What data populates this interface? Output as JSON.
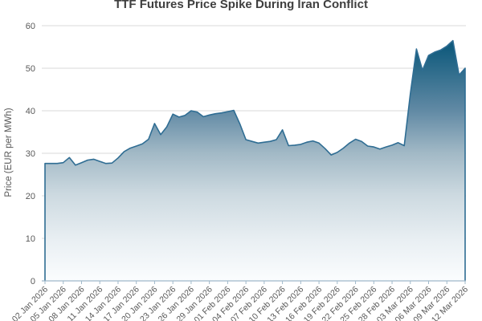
{
  "chart_data": {
    "type": "area",
    "title": "TTF Futures Price Spike During Iran Conflict",
    "xlabel": "",
    "ylabel": "Price (EUR per MWh)",
    "ylim": [
      0,
      60
    ],
    "ytick_step": 10,
    "grid": "horizontal",
    "legend": "none",
    "x_label_every": 3,
    "x_label_rotation_deg": 45,
    "series_name": "TTF front-month futures price",
    "dates": [
      "02 Jan 2026",
      "03 Jan 2026",
      "04 Jan 2026",
      "05 Jan 2026",
      "06 Jan 2026",
      "07 Jan 2026",
      "08 Jan 2026",
      "09 Jan 2026",
      "10 Jan 2026",
      "11 Jan 2026",
      "12 Jan 2026",
      "13 Jan 2026",
      "14 Jan 2026",
      "15 Jan 2026",
      "16 Jan 2026",
      "17 Jan 2026",
      "18 Jan 2026",
      "19 Jan 2026",
      "20 Jan 2026",
      "21 Jan 2026",
      "22 Jan 2026",
      "23 Jan 2026",
      "24 Jan 2026",
      "25 Jan 2026",
      "26 Jan 2026",
      "27 Jan 2026",
      "28 Jan 2026",
      "29 Jan 2026",
      "30 Jan 2026",
      "31 Jan 2026",
      "01 Feb 2026",
      "02 Feb 2026",
      "03 Feb 2026",
      "04 Feb 2026",
      "05 Feb 2026",
      "06 Feb 2026",
      "07 Feb 2026",
      "08 Feb 2026",
      "09 Feb 2026",
      "10 Feb 2026",
      "11 Feb 2026",
      "12 Feb 2026",
      "13 Feb 2026",
      "14 Feb 2026",
      "15 Feb 2026",
      "16 Feb 2026",
      "17 Feb 2026",
      "18 Feb 2026",
      "19 Feb 2026",
      "20 Feb 2026",
      "21 Feb 2026",
      "22 Feb 2026",
      "23 Feb 2026",
      "24 Feb 2026",
      "25 Feb 2026",
      "26 Feb 2026",
      "27 Feb 2026",
      "28 Feb 2026",
      "01 Mar 2026",
      "02 Mar 2026",
      "03 Mar 2026",
      "04 Mar 2026",
      "05 Mar 2026",
      "06 Mar 2026",
      "07 Mar 2026",
      "08 Mar 2026",
      "09 Mar 2026",
      "10 Mar 2026",
      "11 Mar 2026",
      "12 Mar 2026"
    ],
    "values": [
      27.6,
      27.6,
      27.6,
      27.8,
      29.0,
      27.2,
      27.8,
      28.4,
      28.6,
      28.1,
      27.6,
      27.7,
      28.9,
      30.4,
      31.2,
      31.7,
      32.2,
      33.3,
      37.0,
      34.4,
      36.2,
      39.2,
      38.5,
      38.9,
      40.0,
      39.7,
      38.6,
      39.0,
      39.3,
      39.5,
      39.8,
      40.1,
      36.9,
      33.2,
      32.8,
      32.4,
      32.6,
      32.8,
      33.2,
      35.5,
      31.8,
      31.9,
      32.1,
      32.6,
      32.9,
      32.4,
      31.1,
      29.6,
      30.2,
      31.2,
      32.4,
      33.3,
      32.8,
      31.7,
      31.5,
      31.0,
      31.5,
      31.9,
      32.5,
      31.8,
      44.0,
      54.5,
      49.5,
      53.0,
      53.8,
      54.3,
      55.2,
      56.5,
      48.4,
      50.0
    ],
    "colors": {
      "line": "#2f6d93",
      "gridline": "#d9d9d9",
      "axis_line": "#9fb8c9",
      "title_text": "#3f3f3f",
      "tick_text": "#595959",
      "fill_gradient_stops": [
        {
          "offset": 0.0,
          "color": "#0b5377"
        },
        {
          "offset": 0.09,
          "color": "#135c7e"
        },
        {
          "offset": 0.33,
          "color": "#6089a4"
        },
        {
          "offset": 0.5,
          "color": "#a2b9c6"
        },
        {
          "offset": 0.66,
          "color": "#ccd9e0"
        },
        {
          "offset": 0.84,
          "color": "#e9eff3"
        },
        {
          "offset": 1.0,
          "color": "#fbfdfe"
        }
      ]
    }
  }
}
